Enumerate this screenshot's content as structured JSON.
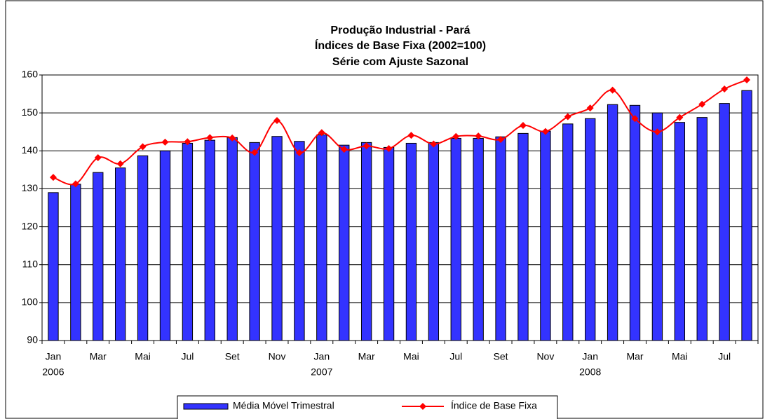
{
  "chart_data": {
    "type": "bar_line",
    "title_lines": [
      "Produção Industrial - Pará",
      "Índices de Base Fixa (2002=100)",
      "Série com Ajuste Sazonal"
    ],
    "categories": [
      "Jan",
      null,
      "Mar",
      null,
      "Mai",
      null,
      "Jul",
      null,
      "Set",
      null,
      "Nov",
      null,
      "Jan",
      null,
      "Mar",
      null,
      "Mai",
      null,
      "Jul",
      null,
      "Set",
      null,
      "Nov",
      null,
      "Jan",
      null,
      "Mar",
      null,
      "Mai",
      null,
      "Jul",
      null
    ],
    "year_labels": [
      "2006",
      null,
      null,
      null,
      null,
      null,
      null,
      null,
      null,
      null,
      null,
      null,
      "2007",
      null,
      null,
      null,
      null,
      null,
      null,
      null,
      null,
      null,
      null,
      null,
      "2008",
      null,
      null,
      null,
      null,
      null,
      null,
      null
    ],
    "series": [
      {
        "name": "Média Móvel Trimestral",
        "type": "bar",
        "color": "#3333ff",
        "values": [
          129,
          131.2,
          134.3,
          135.5,
          138.7,
          140,
          142,
          142.8,
          143.5,
          142.2,
          143.8,
          142.5,
          144.2,
          141.5,
          142.2,
          140.9,
          142,
          142.2,
          143.3,
          143.3,
          143.7,
          144.6,
          145.2,
          147.1,
          148.5,
          152.2,
          152,
          150,
          147.5,
          148.8,
          152.5,
          155.9
        ]
      },
      {
        "name": "Índice de Base Fixa",
        "type": "line",
        "color": "#ff0000",
        "values": [
          133,
          131.3,
          138.2,
          136.6,
          141.1,
          142.3,
          142.4,
          143.5,
          143.4,
          139.6,
          148,
          139.5,
          144.8,
          140.4,
          141.3,
          140.6,
          144.1,
          141.8,
          143.8,
          143.9,
          143,
          146.7,
          145.1,
          149,
          151.3,
          156,
          148.5,
          145,
          148.8,
          152.3,
          156.3,
          158.7
        ]
      }
    ],
    "ylim": [
      90,
      160
    ],
    "yticks": [
      90,
      100,
      110,
      120,
      130,
      140,
      150,
      160
    ],
    "grid": true
  }
}
